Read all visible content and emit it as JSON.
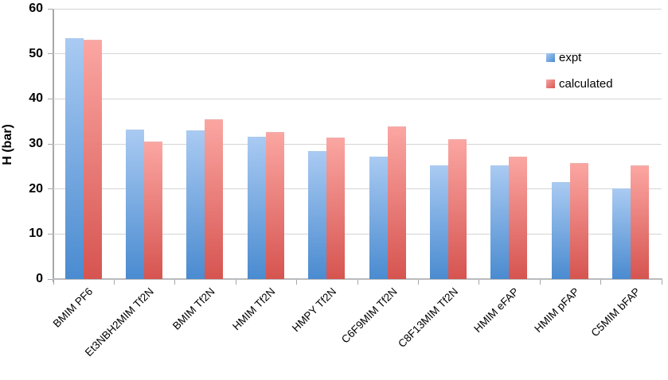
{
  "chart_data": {
    "type": "bar",
    "title": "",
    "xlabel": "",
    "ylabel": "H (bar)",
    "ylim": [
      0,
      60
    ],
    "yticks": [
      0,
      10,
      20,
      30,
      40,
      50,
      60
    ],
    "grid": true,
    "legend_position": "upper right",
    "categories": [
      "BMIM PF6",
      "Et3NBH2MIM Tf2N",
      "BMIM Tf2N",
      "HMIM Tf2N",
      "HMPY Tf2N",
      "C6F9MIM Tf2N",
      "C8F13MIM Tf2N",
      "HMIM eFAP",
      "HMIM pFAP",
      "C5MIM bFAP"
    ],
    "series": [
      {
        "name": "expt",
        "color_top": "#a9caf2",
        "color_bottom": "#4a8bd0",
        "values": [
          53.5,
          33.1,
          33.0,
          31.6,
          28.5,
          27.2,
          25.2,
          25.2,
          21.6,
          20.2
        ]
      },
      {
        "name": "calculated",
        "color_top": "#fba6a2",
        "color_bottom": "#d65450",
        "values": [
          53.2,
          30.5,
          35.5,
          32.7,
          31.5,
          33.8,
          31.0,
          27.1,
          25.8,
          25.2
        ]
      }
    ]
  },
  "colors": {
    "gridline": "#d4d4d4",
    "axis": "#a5a7aa",
    "text": "#000000"
  }
}
